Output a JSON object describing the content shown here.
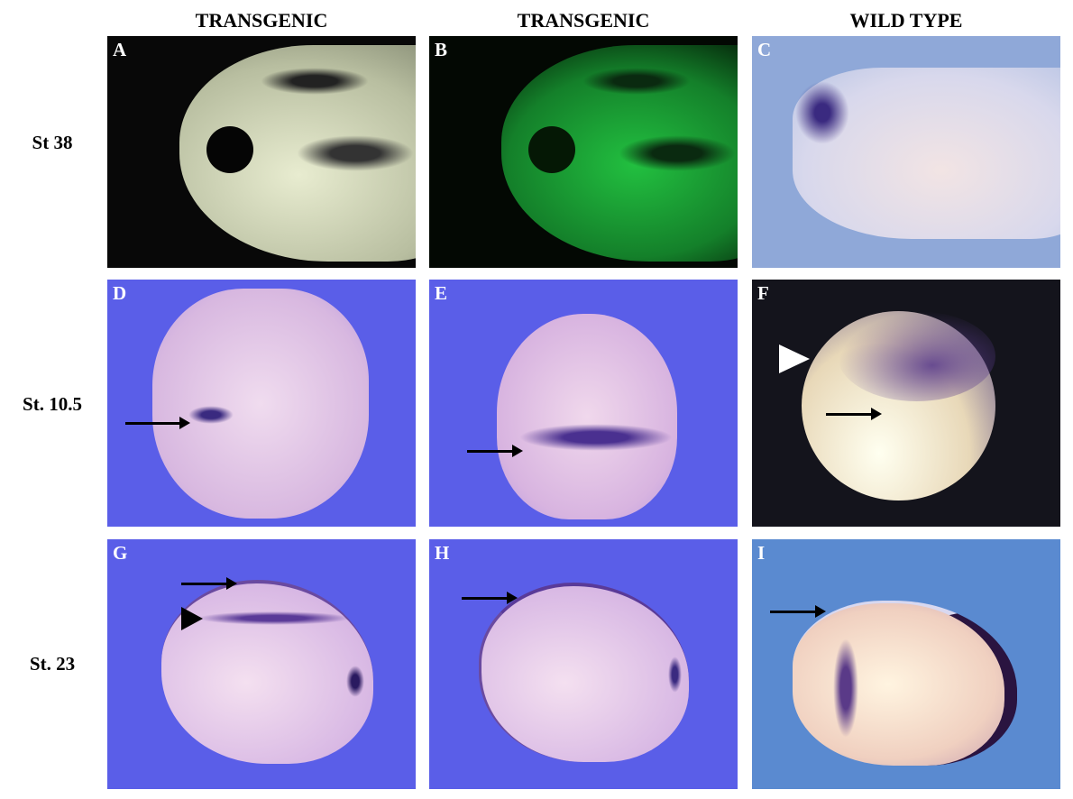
{
  "column_headers": [
    "TRANSGENIC",
    "TRANSGENIC",
    "WILD TYPE"
  ],
  "row_labels": [
    "St 38",
    "St. 10.5",
    "St. 23"
  ],
  "panels": [
    {
      "letter": "A"
    },
    {
      "letter": "B"
    },
    {
      "letter": "C"
    },
    {
      "letter": "D"
    },
    {
      "letter": "E"
    },
    {
      "letter": "F"
    },
    {
      "letter": "G"
    },
    {
      "letter": "H"
    },
    {
      "letter": "I"
    }
  ],
  "colors": {
    "blue_background": "#5a5ee8",
    "green_fluorescence": "#1fb43a",
    "wild_type_blue": "#8fa8d8",
    "stain": "#3a2a80"
  }
}
